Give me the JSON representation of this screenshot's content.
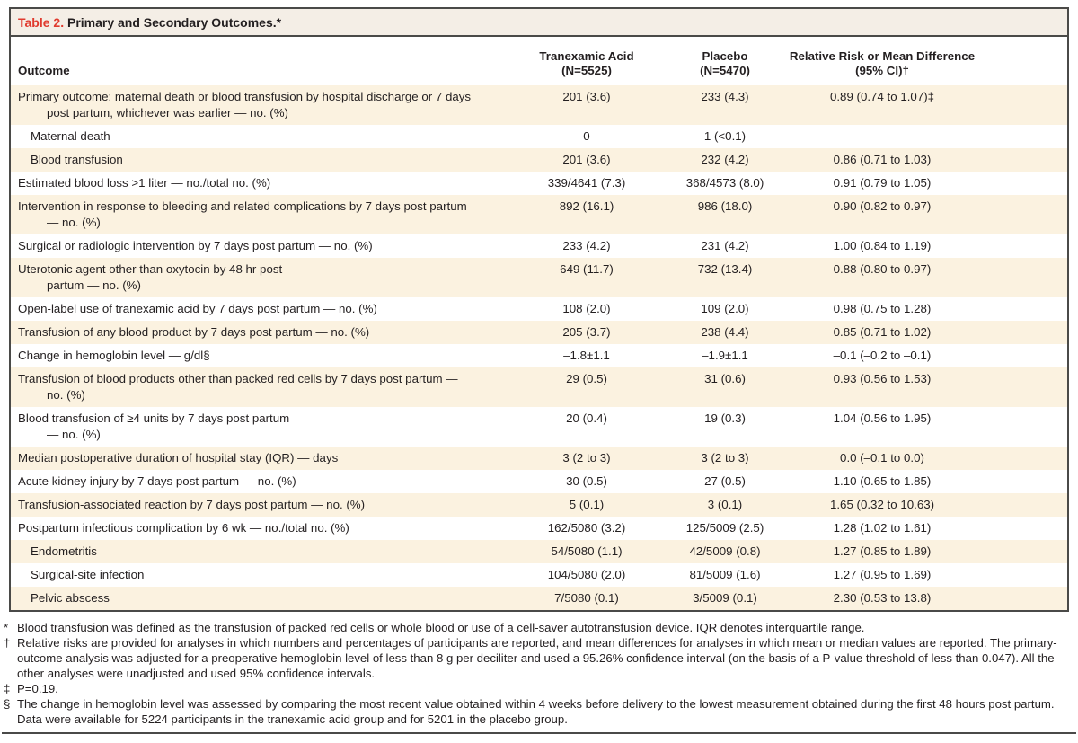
{
  "table": {
    "title_label": "Table 2.",
    "title_text": "Primary and Secondary Outcomes.*",
    "header": {
      "outcome": "Outcome",
      "col1_line1": "Tranexamic Acid",
      "col1_line2": "(N=5525)",
      "col2_line1": "Placebo",
      "col2_line2": "(N=5470)",
      "col3_line1": "Relative Risk or Mean Difference",
      "col3_line2": "(95% CI)†"
    },
    "rows": [
      {
        "indent": 0,
        "lines": [
          "Primary outcome: maternal death or blood transfusion by hospital discharge or 7 days",
          "post partum, whichever was earlier — no. (%)"
        ],
        "tranexamic": "201 (3.6)",
        "placebo": "233 (4.3)",
        "rr": "0.89 (0.74 to 1.07)‡"
      },
      {
        "indent": 1,
        "lines": [
          "Maternal death"
        ],
        "tranexamic": "0",
        "placebo": "1 (<0.1)",
        "rr": "—"
      },
      {
        "indent": 1,
        "lines": [
          "Blood transfusion"
        ],
        "tranexamic": "201 (3.6)",
        "placebo": "232 (4.2)",
        "rr": "0.86 (0.71 to 1.03)"
      },
      {
        "indent": 0,
        "lines": [
          "Estimated blood loss >1 liter — no./total no. (%)"
        ],
        "tranexamic": "339/4641 (7.3)",
        "placebo": "368/4573 (8.0)",
        "rr": "0.91 (0.79 to 1.05)"
      },
      {
        "indent": 0,
        "lines": [
          "Intervention in response to bleeding and related complications by 7 days post partum",
          "— no. (%)"
        ],
        "tranexamic": "892 (16.1)",
        "placebo": "986 (18.0)",
        "rr": "0.90 (0.82 to 0.97)"
      },
      {
        "indent": 0,
        "lines": [
          "Surgical or radiologic intervention by 7 days post partum — no. (%)"
        ],
        "tranexamic": "233 (4.2)",
        "placebo": "231 (4.2)",
        "rr": "1.00 (0.84 to 1.19)"
      },
      {
        "indent": 0,
        "lines": [
          "Uterotonic agent other than oxytocin by 48 hr post",
          "partum — no. (%)"
        ],
        "tranexamic": "649 (11.7)",
        "placebo": "732 (13.4)",
        "rr": "0.88 (0.80 to 0.97)"
      },
      {
        "indent": 0,
        "lines": [
          "Open-label use of tranexamic acid by 7 days post partum — no. (%)"
        ],
        "tranexamic": "108 (2.0)",
        "placebo": "109 (2.0)",
        "rr": "0.98 (0.75 to 1.28)"
      },
      {
        "indent": 0,
        "lines": [
          "Transfusion of any blood product by 7 days post partum — no. (%)"
        ],
        "tranexamic": "205 (3.7)",
        "placebo": "238 (4.4)",
        "rr": "0.85 (0.71 to 1.02)"
      },
      {
        "indent": 0,
        "lines": [
          "Change in hemoglobin level — g/dl§"
        ],
        "tranexamic": "–1.8±1.1",
        "placebo": "–1.9±1.1",
        "rr": "–0.1 (–0.2 to –0.1)"
      },
      {
        "indent": 0,
        "lines": [
          "Transfusion of blood products other than packed red cells by 7 days post partum —",
          "no. (%)"
        ],
        "tranexamic": "29 (0.5)",
        "placebo": "31 (0.6)",
        "rr": "0.93 (0.56 to 1.53)"
      },
      {
        "indent": 0,
        "lines": [
          "Blood transfusion of ≥4 units by 7 days post partum",
          "— no. (%)"
        ],
        "tranexamic": "20 (0.4)",
        "placebo": "19 (0.3)",
        "rr": "1.04 (0.56 to 1.95)"
      },
      {
        "indent": 0,
        "lines": [
          "Median postoperative duration of hospital stay (IQR) — days"
        ],
        "tranexamic": "3 (2 to 3)",
        "placebo": "3 (2 to 3)",
        "rr": "0.0 (–0.1 to 0.0)"
      },
      {
        "indent": 0,
        "lines": [
          "Acute kidney injury by 7 days post partum — no. (%)"
        ],
        "tranexamic": "30 (0.5)",
        "placebo": "27 (0.5)",
        "rr": "1.10 (0.65 to 1.85)"
      },
      {
        "indent": 0,
        "lines": [
          "Transfusion-associated reaction by 7 days post partum — no. (%)"
        ],
        "tranexamic": "5 (0.1)",
        "placebo": "3 (0.1)",
        "rr": "1.65 (0.32 to 10.63)"
      },
      {
        "indent": 0,
        "lines": [
          "Postpartum infectious complication by 6 wk — no./total no. (%)"
        ],
        "tranexamic": "162/5080 (3.2)",
        "placebo": "125/5009 (2.5)",
        "rr": "1.28 (1.02 to 1.61)"
      },
      {
        "indent": 1,
        "lines": [
          "Endometritis"
        ],
        "tranexamic": "54/5080 (1.1)",
        "placebo": "42/5009 (0.8)",
        "rr": "1.27 (0.85 to 1.89)"
      },
      {
        "indent": 1,
        "lines": [
          "Surgical-site infection"
        ],
        "tranexamic": "104/5080 (2.0)",
        "placebo": "81/5009 (1.6)",
        "rr": "1.27 (0.95 to 1.69)"
      },
      {
        "indent": 1,
        "lines": [
          "Pelvic abscess"
        ],
        "tranexamic": "7/5080 (0.1)",
        "placebo": "3/5009 (0.1)",
        "rr": "2.30 (0.53 to 13.8)"
      }
    ]
  },
  "footnotes": [
    {
      "marker": "*",
      "text": "Blood transfusion was defined as the transfusion of packed red cells or whole blood or use of a cell-saver autotransfusion device. IQR denotes interquartile range."
    },
    {
      "marker": "†",
      "text": "Relative risks are provided for analyses in which numbers and percentages of participants are reported, and mean differences for analyses in which mean or median values are reported. The primary-outcome analysis was adjusted for a preoperative hemoglobin level of less than 8 g per deciliter and used a 95.26% confidence interval (on the basis of a P-value threshold of less than 0.047). All the other analyses were unadjusted and used 95% confidence intervals."
    },
    {
      "marker": "‡",
      "text": "P=0.19."
    },
    {
      "marker": "§",
      "text": "The change in hemoglobin level was assessed by comparing the most recent value obtained within 4 weeks before delivery to the lowest measurement obtained during the first 48 hours post partum. Data were available for 5224 participants in the tranexamic acid group and for 5201 in the placebo group."
    }
  ],
  "colors": {
    "accent_red": "#e03a2e",
    "row_shade": "#fbf2e0",
    "title_bar_bg": "#f4eee6",
    "border": "#4a4a48"
  }
}
